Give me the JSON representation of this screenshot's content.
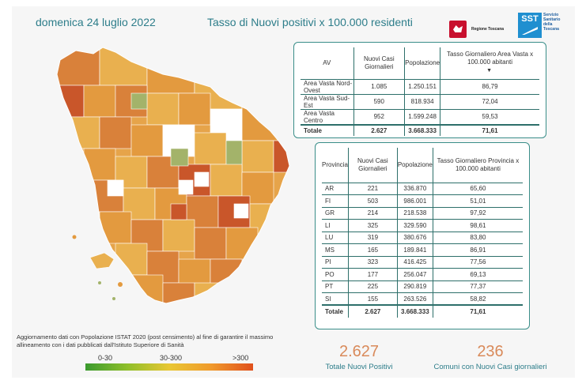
{
  "header": {
    "date": "domenica 24 luglio 2022",
    "title": "Tasso di Nuovi positivi x 100.000 residenti",
    "logo_region": "Regione Toscana",
    "logo_sst_abbr": "SST",
    "logo_sst_text": "Servizio Sanitario della Toscana"
  },
  "colors": {
    "accent": "#2d7d8a",
    "border": "#3a8e89",
    "kpi_number": "#d98a5a"
  },
  "area_table": {
    "headers": [
      "AV",
      "Nuovi Casi Giornalieri",
      "Popolazione",
      "Tasso Giornaliero Area Vasta x 100.000 abitanti"
    ],
    "sort_indicator": "▼",
    "rows": [
      {
        "name": "Area Vasta Nord-Ovest",
        "cases": "1.085",
        "population": "1.250.151",
        "rate": "86,79"
      },
      {
        "name": "Area Vasta Sud-Est",
        "cases": "590",
        "population": "818.934",
        "rate": "72,04"
      },
      {
        "name": "Area Vasta Centro",
        "cases": "952",
        "population": "1.599.248",
        "rate": "59,53"
      }
    ],
    "total": {
      "name": "Totale",
      "cases": "2.627",
      "population": "3.668.333",
      "rate": "71,61"
    }
  },
  "province_table": {
    "headers": [
      "Provincia",
      "Nuovi Casi Giornalieri",
      "Popolazione",
      "Tasso Giornaliero Provincia x 100.000 abitanti"
    ],
    "rows": [
      {
        "name": "AR",
        "cases": "221",
        "population": "336.870",
        "rate": "65,60"
      },
      {
        "name": "FI",
        "cases": "503",
        "population": "986.001",
        "rate": "51,01"
      },
      {
        "name": "GR",
        "cases": "214",
        "population": "218.538",
        "rate": "97,92"
      },
      {
        "name": "LI",
        "cases": "325",
        "population": "329.590",
        "rate": "98,61"
      },
      {
        "name": "LU",
        "cases": "319",
        "population": "380.676",
        "rate": "83,80"
      },
      {
        "name": "MS",
        "cases": "165",
        "population": "189.841",
        "rate": "86,91"
      },
      {
        "name": "PI",
        "cases": "323",
        "population": "416.425",
        "rate": "77,56"
      },
      {
        "name": "PO",
        "cases": "177",
        "population": "256.047",
        "rate": "69,13"
      },
      {
        "name": "PT",
        "cases": "225",
        "population": "290.819",
        "rate": "77,37"
      },
      {
        "name": "SI",
        "cases": "155",
        "population": "263.526",
        "rate": "58,82"
      }
    ],
    "total": {
      "name": "Totale",
      "cases": "2.627",
      "population": "3.668.333",
      "rate": "71,61"
    }
  },
  "note": "Aggiornamento dati con Popolazione ISTAT 2020 (post censimento) al fine di garantire il massimo allineamento con i dati pubblicati dall'Istituto Superiore di Sanità",
  "legend": {
    "low": "0-30",
    "mid": "30-300",
    "high": ">300",
    "colors": [
      "#3a9a2e",
      "#8fbf2a",
      "#e9c733",
      "#f09a2c",
      "#e0501c"
    ]
  },
  "kpis": {
    "total_positives": {
      "value": "2.627",
      "label": "Totale Nuovi Positivi"
    },
    "municipalities": {
      "value": "236",
      "label": "Comuni con Nuovi Casi giornalieri"
    }
  },
  "map": {
    "region": "Toscana",
    "colors": {
      "low": "#a3b36a",
      "mid_low": "#e9b04f",
      "mid": "#e39a3f",
      "mid_high": "#d9813a",
      "high": "#c9562a",
      "none": "#ffffff"
    }
  }
}
